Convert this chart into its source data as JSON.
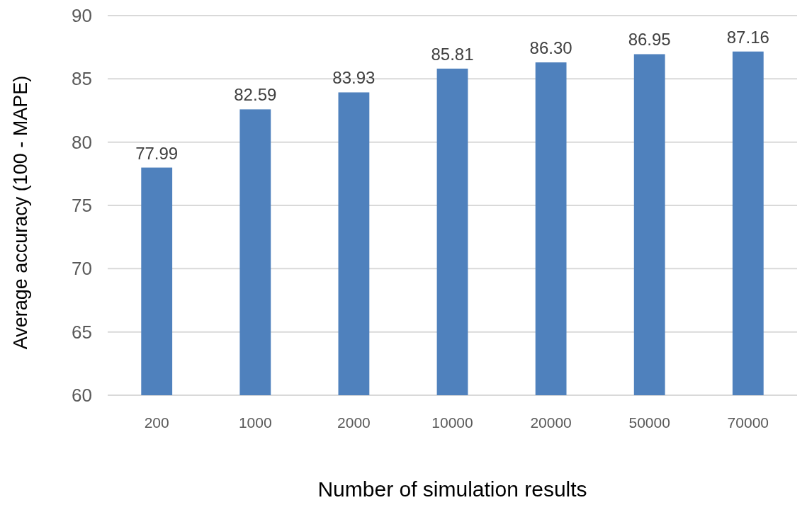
{
  "chart_data": {
    "type": "bar",
    "categories": [
      "200",
      "1000",
      "2000",
      "10000",
      "20000",
      "50000",
      "70000"
    ],
    "values": [
      77.99,
      82.59,
      83.93,
      85.81,
      86.3,
      86.95,
      87.16
    ],
    "value_labels": [
      "77.99",
      "82.59",
      "83.93",
      "85.81",
      "86.30",
      "86.95",
      "87.16"
    ],
    "color": "#4f81bd",
    "ylim": [
      60,
      90
    ],
    "yticks": [
      60,
      65,
      70,
      75,
      80,
      85,
      90
    ],
    "grid": "y",
    "xlabel": "Number of simulation results",
    "ylabel": "Average accuracy (100 - MAPE)"
  }
}
